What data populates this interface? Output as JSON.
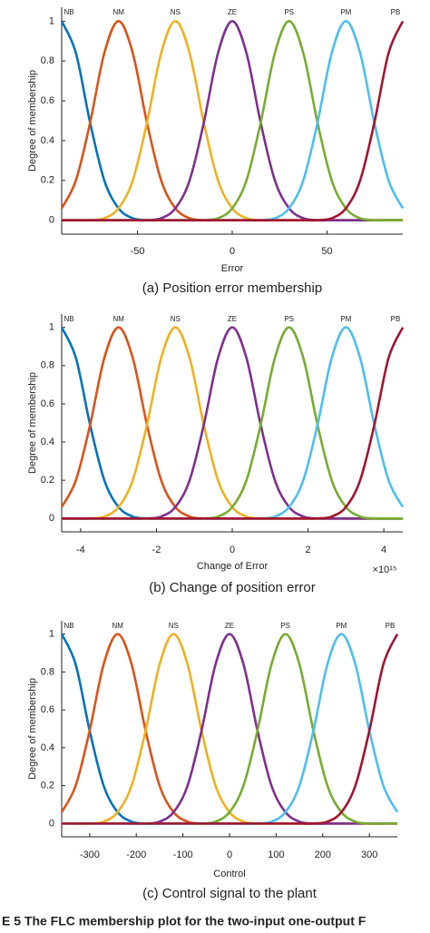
{
  "chart_data": [
    {
      "type": "line",
      "x_label": "Error",
      "y_label": "Degree of membership",
      "caption": "(a) Position error membership",
      "x": [
        -90,
        -82.5,
        -75,
        -67.5,
        -60,
        -52.5,
        -45,
        -37.5,
        -30,
        -22.5,
        -15,
        -7.5,
        0,
        7.5,
        15,
        22.5,
        30,
        37.5,
        45,
        52.5,
        60,
        67.5,
        75,
        82.5,
        90
      ],
      "xlim": [
        -90,
        90
      ],
      "xticks": [
        -50,
        0,
        50
      ],
      "ylim": [
        -0.07,
        1.07
      ],
      "yticks": [
        0,
        0.2,
        0.4,
        0.6,
        0.8,
        1
      ],
      "series": [
        {
          "name": "NB",
          "color": "#0072bd",
          "values": [
            1,
            0.84,
            0.49,
            0.2,
            0.06,
            0.01,
            0,
            0,
            0,
            0,
            0,
            0,
            0,
            0,
            0,
            0,
            0,
            0,
            0,
            0,
            0,
            0,
            0,
            0,
            0
          ]
        },
        {
          "name": "NM",
          "color": "#d95319",
          "values": [
            0.06,
            0.2,
            0.49,
            0.84,
            1,
            0.84,
            0.49,
            0.2,
            0.06,
            0.01,
            0,
            0,
            0,
            0,
            0,
            0,
            0,
            0,
            0,
            0,
            0,
            0,
            0,
            0,
            0
          ]
        },
        {
          "name": "NS",
          "color": "#edb120",
          "values": [
            0,
            0,
            0,
            0.01,
            0.06,
            0.2,
            0.49,
            0.84,
            1,
            0.84,
            0.49,
            0.2,
            0.06,
            0.01,
            0,
            0,
            0,
            0,
            0,
            0,
            0,
            0,
            0,
            0,
            0
          ]
        },
        {
          "name": "ZE",
          "color": "#7e2f8e",
          "values": [
            0,
            0,
            0,
            0,
            0,
            0,
            0,
            0.01,
            0.06,
            0.2,
            0.49,
            0.84,
            1,
            0.84,
            0.49,
            0.2,
            0.06,
            0.01,
            0,
            0,
            0,
            0,
            0,
            0,
            0
          ]
        },
        {
          "name": "PS",
          "color": "#77ac30",
          "values": [
            0,
            0,
            0,
            0,
            0,
            0,
            0,
            0,
            0,
            0,
            0,
            0.01,
            0.06,
            0.2,
            0.49,
            0.84,
            1,
            0.84,
            0.49,
            0.2,
            0.06,
            0.01,
            0,
            0,
            0
          ]
        },
        {
          "name": "PM",
          "color": "#4dbeee",
          "values": [
            0,
            0,
            0,
            0,
            0,
            0,
            0,
            0,
            0,
            0,
            0,
            0,
            0,
            0,
            0,
            0.01,
            0.06,
            0.2,
            0.49,
            0.84,
            1,
            0.84,
            0.49,
            0.2,
            0.06
          ]
        },
        {
          "name": "PB",
          "color": "#a2142f",
          "values": [
            0,
            0,
            0,
            0,
            0,
            0,
            0,
            0,
            0,
            0,
            0,
            0,
            0,
            0,
            0,
            0,
            0,
            0,
            0,
            0.01,
            0.06,
            0.2,
            0.49,
            0.84,
            1
          ]
        }
      ]
    },
    {
      "type": "line",
      "x_label": "Change of Error",
      "y_label": "Degree of membership",
      "caption": "(b) Change of position error",
      "x_multiplier": "×10¹⁵",
      "x": [
        -4.5,
        -4.125,
        -3.75,
        -3.375,
        -3,
        -2.625,
        -2.25,
        -1.875,
        -1.5,
        -1.125,
        -0.75,
        -0.375,
        0,
        0.375,
        0.75,
        1.125,
        1.5,
        1.875,
        2.25,
        2.625,
        3,
        3.375,
        3.75,
        4.125,
        4.5
      ],
      "xlim": [
        -4.5,
        4.5
      ],
      "xticks": [
        -4,
        -2,
        0,
        2,
        4
      ],
      "ylim": [
        -0.07,
        1.07
      ],
      "yticks": [
        0,
        0.2,
        0.4,
        0.6,
        0.8,
        1
      ],
      "series": [
        {
          "name": "NB",
          "color": "#0072bd",
          "values": [
            1,
            0.84,
            0.49,
            0.2,
            0.06,
            0.01,
            0,
            0,
            0,
            0,
            0,
            0,
            0,
            0,
            0,
            0,
            0,
            0,
            0,
            0,
            0,
            0,
            0,
            0,
            0
          ]
        },
        {
          "name": "NM",
          "color": "#d95319",
          "values": [
            0.06,
            0.2,
            0.49,
            0.84,
            1,
            0.84,
            0.49,
            0.2,
            0.06,
            0.01,
            0,
            0,
            0,
            0,
            0,
            0,
            0,
            0,
            0,
            0,
            0,
            0,
            0,
            0,
            0
          ]
        },
        {
          "name": "NS",
          "color": "#edb120",
          "values": [
            0,
            0,
            0,
            0.01,
            0.06,
            0.2,
            0.49,
            0.84,
            1,
            0.84,
            0.49,
            0.2,
            0.06,
            0.01,
            0,
            0,
            0,
            0,
            0,
            0,
            0,
            0,
            0,
            0,
            0
          ]
        },
        {
          "name": "ZE",
          "color": "#7e2f8e",
          "values": [
            0,
            0,
            0,
            0,
            0,
            0,
            0,
            0.01,
            0.06,
            0.2,
            0.49,
            0.84,
            1,
            0.84,
            0.49,
            0.2,
            0.06,
            0.01,
            0,
            0,
            0,
            0,
            0,
            0,
            0
          ]
        },
        {
          "name": "PS",
          "color": "#77ac30",
          "values": [
            0,
            0,
            0,
            0,
            0,
            0,
            0,
            0,
            0,
            0,
            0,
            0.01,
            0.06,
            0.2,
            0.49,
            0.84,
            1,
            0.84,
            0.49,
            0.2,
            0.06,
            0.01,
            0,
            0,
            0
          ]
        },
        {
          "name": "PM",
          "color": "#4dbeee",
          "values": [
            0,
            0,
            0,
            0,
            0,
            0,
            0,
            0,
            0,
            0,
            0,
            0,
            0,
            0,
            0,
            0.01,
            0.06,
            0.2,
            0.49,
            0.84,
            1,
            0.84,
            0.49,
            0.2,
            0.06
          ]
        },
        {
          "name": "PB",
          "color": "#a2142f",
          "values": [
            0,
            0,
            0,
            0,
            0,
            0,
            0,
            0,
            0,
            0,
            0,
            0,
            0,
            0,
            0,
            0,
            0,
            0,
            0,
            0.01,
            0.06,
            0.2,
            0.49,
            0.84,
            1
          ]
        }
      ]
    },
    {
      "type": "line",
      "x_label": "Control",
      "y_label": "Degree of membership",
      "caption": "(c) Control signal to the plant",
      "x": [
        -360,
        -330,
        -300,
        -270,
        -240,
        -210,
        -180,
        -150,
        -120,
        -90,
        -60,
        -30,
        0,
        30,
        60,
        90,
        120,
        150,
        180,
        210,
        240,
        270,
        300,
        330,
        360
      ],
      "xlim": [
        -360,
        360
      ],
      "xticks": [
        -300,
        -200,
        -100,
        0,
        100,
        200,
        300
      ],
      "ylim": [
        -0.07,
        1.07
      ],
      "yticks": [
        0,
        0.2,
        0.4,
        0.6,
        0.8,
        1
      ],
      "series": [
        {
          "name": "NB",
          "color": "#0072bd",
          "values": [
            1,
            0.84,
            0.49,
            0.2,
            0.06,
            0.01,
            0,
            0,
            0,
            0,
            0,
            0,
            0,
            0,
            0,
            0,
            0,
            0,
            0,
            0,
            0,
            0,
            0,
            0,
            0
          ]
        },
        {
          "name": "NM",
          "color": "#d95319",
          "values": [
            0.06,
            0.2,
            0.49,
            0.84,
            1,
            0.84,
            0.49,
            0.2,
            0.06,
            0.01,
            0,
            0,
            0,
            0,
            0,
            0,
            0,
            0,
            0,
            0,
            0,
            0,
            0,
            0,
            0
          ]
        },
        {
          "name": "NS",
          "color": "#edb120",
          "values": [
            0,
            0,
            0,
            0.01,
            0.06,
            0.2,
            0.49,
            0.84,
            1,
            0.84,
            0.49,
            0.2,
            0.06,
            0.01,
            0,
            0,
            0,
            0,
            0,
            0,
            0,
            0,
            0,
            0,
            0
          ]
        },
        {
          "name": "ZE",
          "color": "#7e2f8e",
          "values": [
            0,
            0,
            0,
            0,
            0,
            0,
            0,
            0.01,
            0.06,
            0.2,
            0.49,
            0.84,
            1,
            0.84,
            0.49,
            0.2,
            0.06,
            0.01,
            0,
            0,
            0,
            0,
            0,
            0,
            0
          ]
        },
        {
          "name": "PS",
          "color": "#77ac30",
          "values": [
            0,
            0,
            0,
            0,
            0,
            0,
            0,
            0,
            0,
            0,
            0,
            0.01,
            0.06,
            0.2,
            0.49,
            0.84,
            1,
            0.84,
            0.49,
            0.2,
            0.06,
            0.01,
            0,
            0,
            0
          ]
        },
        {
          "name": "PM",
          "color": "#4dbeee",
          "values": [
            0,
            0,
            0,
            0,
            0,
            0,
            0,
            0,
            0,
            0,
            0,
            0,
            0,
            0,
            0,
            0.01,
            0.06,
            0.2,
            0.49,
            0.84,
            1,
            0.84,
            0.49,
            0.2,
            0.06
          ]
        },
        {
          "name": "PB",
          "color": "#a2142f",
          "values": [
            0,
            0,
            0,
            0,
            0,
            0,
            0,
            0,
            0,
            0,
            0,
            0,
            0,
            0,
            0,
            0,
            0,
            0,
            0,
            0.01,
            0.06,
            0.2,
            0.49,
            0.84,
            1
          ]
        }
      ]
    }
  ],
  "figure_caption": "E 5  The FLC membership plot for the two-input one-output F"
}
